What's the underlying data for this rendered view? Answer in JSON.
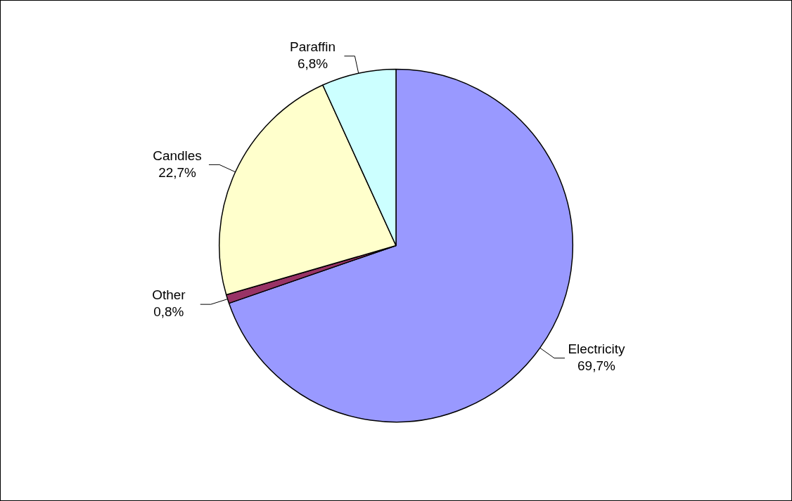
{
  "chart_data": {
    "type": "pie",
    "categories": [
      "Electricity",
      "Other",
      "Candles",
      "Paraffin"
    ],
    "values": [
      69.7,
      0.8,
      22.7,
      6.8
    ],
    "colors": [
      "#9999ff",
      "#993366",
      "#ffffcc",
      "#ccffff"
    ],
    "value_labels": [
      "69,7%",
      "0,8%",
      "22,7%",
      "6,8%"
    ],
    "legend": false
  }
}
